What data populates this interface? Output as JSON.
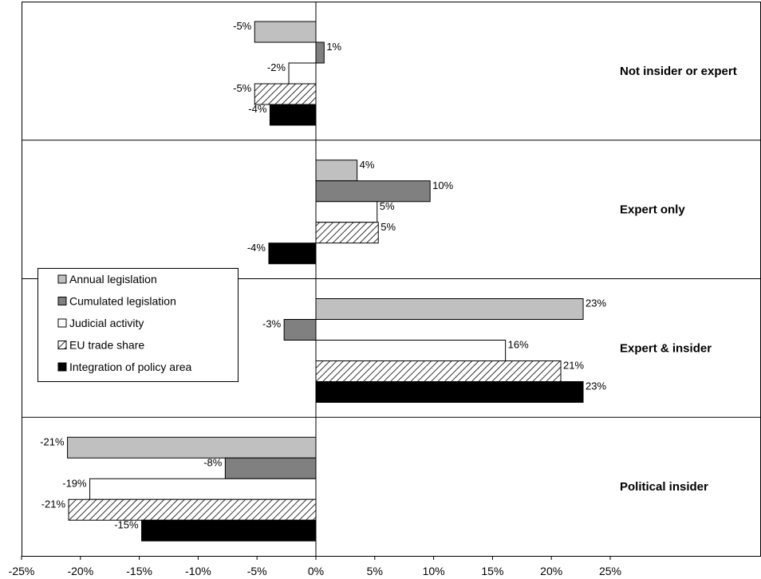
{
  "chart_data": {
    "type": "bar",
    "orientation": "horizontal",
    "title": "",
    "xlabel": "",
    "ylabel": "",
    "xlim": [
      -25,
      25
    ],
    "x_ticks": [
      "-25%",
      "-20%",
      "-15%",
      "-10%",
      "-5%",
      "0%",
      "5%",
      "10%",
      "15%",
      "20%",
      "25%"
    ],
    "x_tick_values": [
      -25,
      -20,
      -15,
      -10,
      -5,
      0,
      5,
      10,
      15,
      20,
      25
    ],
    "grid": false,
    "legend_position": "left",
    "categories": [
      "Not insider or expert",
      "Expert only",
      "Expert & insider",
      "Political insider"
    ],
    "series": [
      {
        "name": "Annual legislation",
        "fill": "#c0c0c0",
        "values": [
          -5.2,
          3.5,
          22.7,
          -21.1
        ],
        "labels": [
          "-5%",
          "4%",
          "23%",
          "-21%"
        ]
      },
      {
        "name": "Cumulated legislation",
        "fill": "#808080",
        "values": [
          0.7,
          9.7,
          -2.7,
          -7.7
        ],
        "labels": [
          "1%",
          "10%",
          "-3%",
          "-8%"
        ]
      },
      {
        "name": "Judicial activity",
        "fill": "#ffffff",
        "values": [
          -2.3,
          5.2,
          16.1,
          -19.2
        ],
        "labels": [
          "-2%",
          "5%",
          "16%",
          "-19%"
        ]
      },
      {
        "name": "EU trade share",
        "fill": "hatch",
        "values": [
          -5.2,
          5.3,
          20.8,
          -21.0
        ],
        "labels": [
          "-5%",
          "5%",
          "21%",
          "-21%"
        ]
      },
      {
        "name": "Integration of policy area",
        "fill": "#000000",
        "values": [
          -3.9,
          -4.0,
          22.7,
          -14.8
        ],
        "labels": [
          "-4%",
          "-4%",
          "23%",
          "-15%"
        ]
      }
    ]
  }
}
